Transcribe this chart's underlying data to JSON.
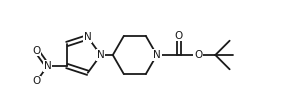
{
  "bg_color": "#ffffff",
  "line_color": "#1a1a1a",
  "line_width": 1.3,
  "font_size": 7.5,
  "figsize": [
    2.89,
    1.1
  ],
  "dpi": 100,
  "xlim": [
    0,
    289
  ],
  "ylim": [
    0,
    110
  ]
}
